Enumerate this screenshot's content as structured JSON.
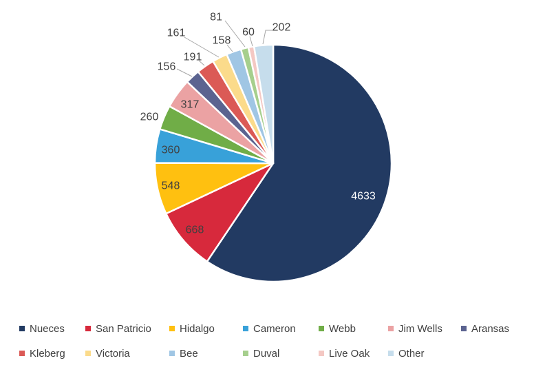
{
  "chart_data": {
    "type": "pie",
    "title": "",
    "categories": [
      "Nueces",
      "San Patricio",
      "Hidalgo",
      "Cameron",
      "Webb",
      "Jim Wells",
      "Aransas",
      "Kleberg",
      "Victoria",
      "Bee",
      "Duval",
      "Live Oak",
      "Other"
    ],
    "values": [
      4633,
      668,
      548,
      360,
      260,
      317,
      156,
      191,
      161,
      158,
      81,
      60,
      202
    ],
    "colors": [
      "#223A62",
      "#D7293C",
      "#FFC010",
      "#38A1D9",
      "#70AD47",
      "#EBA2A3",
      "#5B6390",
      "#DB5A56",
      "#FBDB8B",
      "#A0C6E4",
      "#A6CF8D",
      "#F4C8C3",
      "#C6DDEC"
    ],
    "data_labels": [
      "4633",
      "668",
      "548",
      "360",
      "260",
      "317",
      "156",
      "191",
      "161",
      "158",
      "81",
      "60",
      "202"
    ],
    "start_angle_deg": 0,
    "direction": "clockwise",
    "legend_position": "bottom",
    "legend_rows": [
      [
        "Nueces",
        "San Patricio",
        "Hidalgo",
        "Cameron",
        "Webb",
        "Jim Wells",
        "Aransas"
      ],
      [
        "Kleberg",
        "Victoria",
        "Bee",
        "Duval",
        "Live Oak",
        "Other"
      ]
    ],
    "label_text_color": "#404040",
    "inside_big_slice_label_color": "#FFFFFF",
    "leader_line_color": "#A6A6A6",
    "slice_border_color": "#FFFFFF",
    "background": "#FFFFFF"
  }
}
